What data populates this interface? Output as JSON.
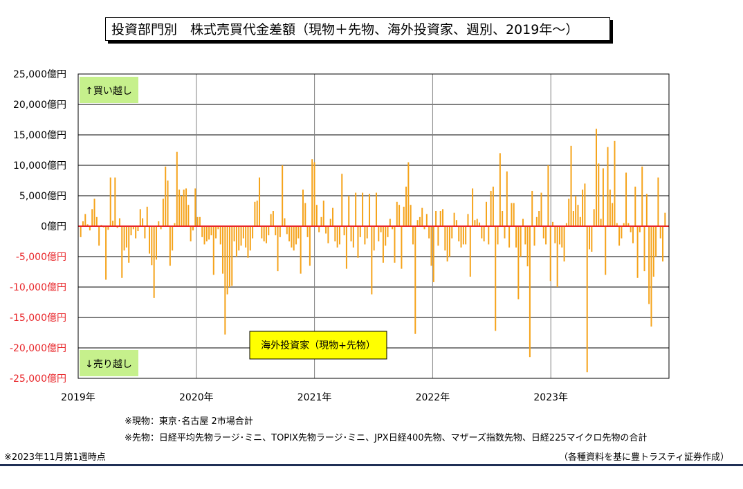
{
  "title": "投資部門別　株式売買代金差額（現物＋先物、海外投資家、週別、2019年～）",
  "chart_data": {
    "type": "bar",
    "y_unit_suffix": "億円",
    "ylim": [
      -25000,
      25000
    ],
    "y_ticks": [
      25000,
      20000,
      15000,
      10000,
      5000,
      0,
      -5000,
      -10000,
      -15000,
      -20000,
      -25000
    ],
    "y_tick_labels": [
      "25,000億円",
      "20,000億円",
      "15,000億円",
      "10,000億円",
      "5,000億円",
      "0億円",
      "-5,000億円",
      "-10,000億円",
      "-15,000億円",
      "-20,000億円",
      "-25,000億円"
    ],
    "x_tick_labels": [
      "2019年",
      "2020年",
      "2021年",
      "2022年",
      "2023年"
    ],
    "grid": true,
    "bar_color": "#f5a31a",
    "zero_line_color": "#e8262a",
    "negative_label_color": "#e8262a",
    "series_label": "海外投資家（現物+先物）",
    "annotations": {
      "buy": "↑買い越し",
      "sell": "↓売り越し"
    },
    "values": [
      -1800,
      800,
      2000,
      300,
      -700,
      2800,
      4500,
      1500,
      -3200,
      200,
      -200,
      -8800,
      -600,
      8000,
      900,
      8000,
      -300,
      1300,
      -8500,
      -4000,
      -3500,
      -6000,
      -1500,
      -500,
      -2000,
      -800,
      2800,
      1300,
      -2000,
      3200,
      -4500,
      -6400,
      -11800,
      -5500,
      800,
      -500,
      4500,
      9800,
      7500,
      -6500,
      -4000,
      500,
      12200,
      6000,
      5000,
      6000,
      6200,
      3500,
      -2500,
      -700,
      6200,
      1500,
      1500,
      -1800,
      -3000,
      -2500,
      -2200,
      -1500,
      -8000,
      -2000,
      -500,
      -3000,
      -7800,
      -17800,
      -11200,
      -10000,
      -9800,
      -2500,
      -5000,
      -4000,
      -3200,
      -2000,
      -3500,
      -5200,
      -4000,
      -2000,
      4000,
      4200,
      8000,
      -2000,
      -2500,
      -2800,
      -1500,
      2000,
      2500,
      -1500,
      -7400,
      -1800,
      10000,
      1300,
      -1300,
      -2500,
      -3500,
      -4000,
      -3000,
      -2000,
      -7800,
      6000,
      3800,
      -1800,
      -6500,
      11000,
      10500,
      3500,
      -1000,
      1500,
      4200,
      -1200,
      -2800,
      1200,
      3000,
      -2500,
      -3500,
      -3000,
      8600,
      -1500,
      -7000,
      5000,
      -2500,
      -3500,
      5500,
      -5200,
      -1800,
      5500,
      -3000,
      -2000,
      5300,
      -11200,
      -4000,
      5500,
      -2500,
      -1000,
      -6000,
      -3200,
      -1800,
      1200,
      -500,
      -6000,
      4000,
      3500,
      -7000,
      3200,
      6500,
      10500,
      3500,
      -3000,
      -17700,
      1000,
      1500,
      3000,
      -500,
      2000,
      -2000,
      -6500,
      -9200,
      2500,
      -3200,
      2500,
      2800,
      -4000,
      -5800,
      -5000,
      -2000,
      2200,
      1000,
      -2500,
      -3500,
      -3000,
      -3000,
      2000,
      -8300,
      6200,
      1000,
      1200,
      600,
      -2000,
      -2500,
      4000,
      -3000,
      5800,
      6500,
      -17200,
      -3000,
      12000,
      2500,
      -2000,
      9000,
      -3500,
      3800,
      3800,
      -3500,
      -12000,
      -5000,
      1200,
      -3000,
      -6600,
      -21500,
      5800,
      -3200,
      1500,
      2500,
      5500,
      -2000,
      -3000,
      10000,
      -9000,
      700,
      -2800,
      -10000,
      -3000,
      -3500,
      -5800,
      500,
      4500,
      13200,
      2500,
      5000,
      3500,
      1500,
      6000,
      7000,
      -24000,
      -3800,
      -4200,
      2800,
      16000,
      10300,
      1200,
      9500,
      -8000,
      13000,
      6000,
      3800,
      14000,
      500,
      -3200,
      -2000,
      500,
      8800,
      500,
      -1000,
      -2800,
      6500,
      -8500,
      -1000,
      9800,
      -7400,
      5300,
      -12800,
      -16500,
      -8300,
      -5000,
      8000,
      -2000,
      -5800,
      2200
    ]
  },
  "legend_box_label": "海外投資家（現物+先物）",
  "notes": {
    "genbutsu": "※現物：東京･名古屋 2市場合計",
    "sakimono": "※先物：日経平均先物ラージ･ミニ、TOPIX先物ラージ･ミニ、JPX日経400先物、マザーズ指数先物、日経225マイクロ先物の合計",
    "as_of": "※2023年11月第1週時点",
    "source": "（各種資料を基に豊トラスティ証券作成）"
  }
}
